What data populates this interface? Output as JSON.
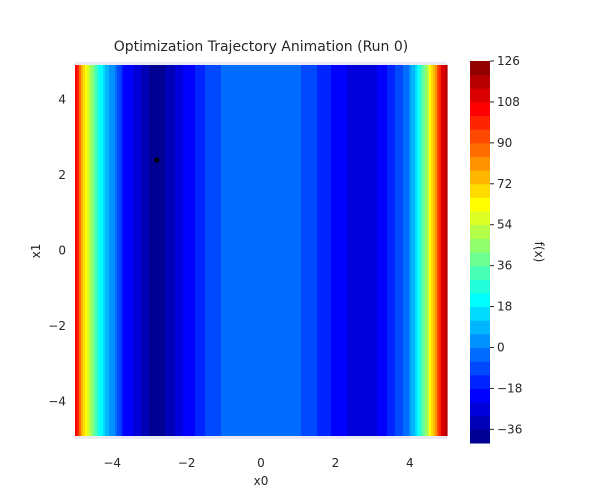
{
  "chart_data": {
    "type": "heatmap",
    "title": "Optimization Trajectory Animation (Run 0)",
    "xlabel": "x0",
    "ylabel": "x1",
    "xlim": [
      -5,
      5
    ],
    "ylim": [
      -5,
      5
    ],
    "x_ticks": [
      -4,
      -2,
      0,
      2,
      4
    ],
    "y_ticks": [
      -4,
      -2,
      0,
      2,
      4
    ],
    "x_tick_labels": [
      "−4",
      "−2",
      "0",
      "2",
      "4"
    ],
    "y_tick_labels": [
      "−4",
      "−2",
      "0",
      "2",
      "4"
    ],
    "colorbar": {
      "label": "f(x)",
      "min": -42,
      "max": 126,
      "ticks": [
        -36,
        -18,
        0,
        18,
        36,
        54,
        72,
        90,
        108,
        126
      ],
      "tick_labels": [
        "−36",
        "−18",
        "0",
        "18",
        "36",
        "54",
        "72",
        "90",
        "108",
        "126"
      ],
      "colormap": "jet",
      "levels": 28
    },
    "contour_profile": {
      "x": [
        -5.0,
        -4.9,
        -4.8,
        -4.6,
        -4.4,
        -4.2,
        -3.9,
        -3.7,
        -3.3,
        -3.0,
        -2.7,
        -2.4,
        -2.1,
        -1.8,
        -1.5,
        -1.2,
        -0.8,
        -0.4,
        0.0,
        0.4,
        0.8,
        1.1,
        1.5,
        1.9,
        2.3,
        2.7,
        3.0,
        3.3,
        3.6,
        3.9,
        4.1,
        4.3,
        4.5,
        4.7,
        4.85,
        5.0
      ],
      "f": [
        112,
        96,
        74,
        52,
        30,
        12,
        -2,
        -18,
        -28,
        -36,
        -38,
        -33,
        -24,
        -18,
        -12,
        -7,
        -4,
        -2,
        0,
        -2,
        -4,
        -6,
        -12,
        -18,
        -24,
        -28,
        -27,
        -20,
        -12,
        -4,
        10,
        30,
        55,
        82,
        108,
        120
      ]
    },
    "trajectory": {
      "points": [
        {
          "x": -2.8,
          "y": 2.4
        }
      ]
    }
  }
}
